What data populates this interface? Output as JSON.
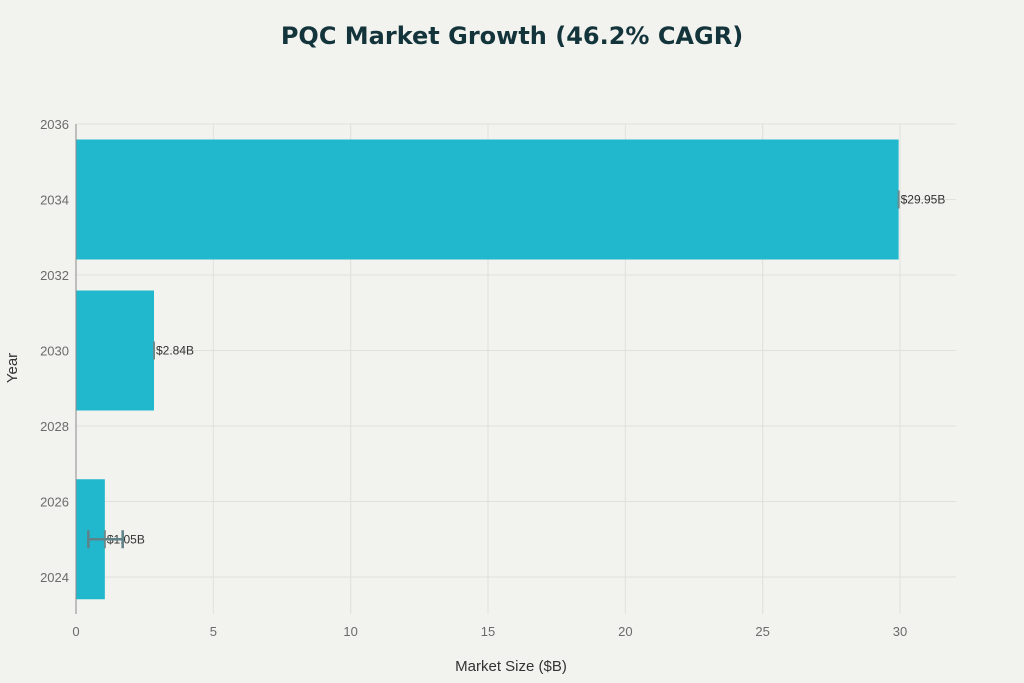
{
  "chart_data": {
    "type": "bar",
    "orientation": "horizontal",
    "title": "PQC Market Growth (46.2% CAGR)",
    "xlabel": "Market Size ($B)",
    "ylabel": "Year",
    "xlim": [
      0,
      32
    ],
    "ylim": [
      2023.2,
      2036
    ],
    "xticks": [
      0,
      5,
      10,
      15,
      20,
      25,
      30
    ],
    "yticks": [
      2024,
      2026,
      2028,
      2030,
      2032,
      2034,
      2036
    ],
    "grid": true,
    "bar_color": "#21b8cd",
    "categories": [
      2025,
      2030,
      2034
    ],
    "values": [
      1.05,
      2.84,
      29.95
    ],
    "data_labels": [
      "$1.05B",
      "$2.84B",
      "$29.95B"
    ],
    "error_bars": [
      {
        "year": 2025,
        "low": 0.45,
        "high": 1.7
      }
    ]
  },
  "ui": {
    "title": "PQC Market Growth (46.2% CAGR)",
    "xlabel": "Market Size ($B)",
    "ylabel": "Year"
  }
}
